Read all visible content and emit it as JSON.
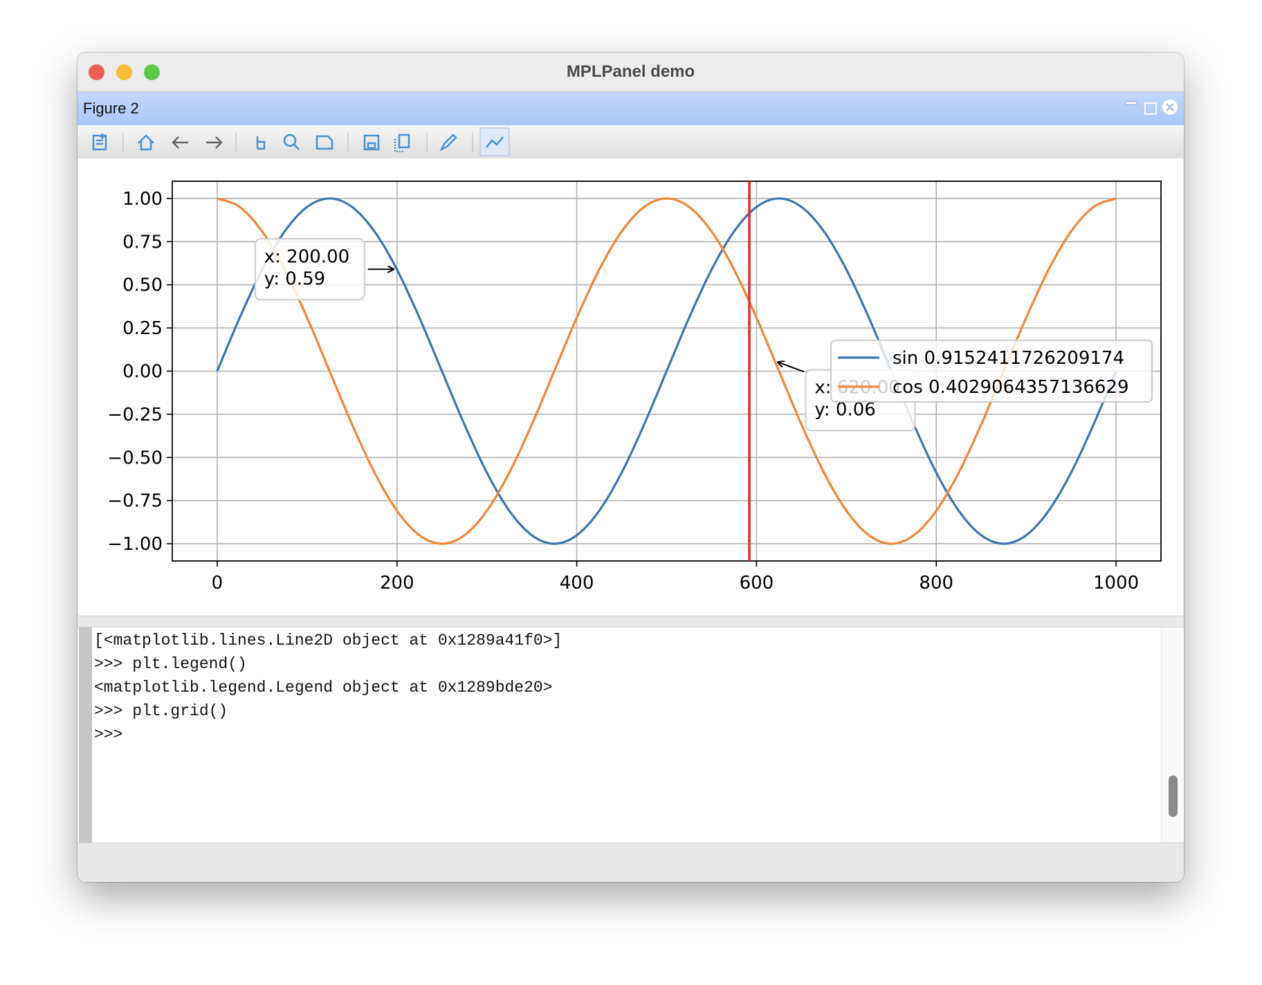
{
  "window": {
    "title": "MPLPanel demo"
  },
  "panel": {
    "title": "Figure 2"
  },
  "chart_data": {
    "type": "line",
    "x": [
      0,
      25,
      50,
      75,
      100,
      125,
      150,
      175,
      200,
      225,
      250,
      275,
      300,
      325,
      350,
      375,
      400,
      425,
      450,
      475,
      500,
      525,
      550,
      575,
      600,
      625,
      650,
      675,
      700,
      725,
      750,
      775,
      800,
      825,
      850,
      875,
      900,
      925,
      950,
      975,
      1000
    ],
    "series": [
      {
        "name": "sin 0.9152411726209174",
        "color": "#3b75af",
        "values": [
          0,
          0.309,
          0.588,
          0.809,
          0.951,
          1,
          0.951,
          0.809,
          0.588,
          0.309,
          0,
          -0.309,
          -0.588,
          -0.809,
          -0.951,
          -1,
          -0.951,
          -0.809,
          -0.588,
          -0.309,
          0,
          0.309,
          0.588,
          0.809,
          0.951,
          1,
          0.951,
          0.809,
          0.588,
          0.309,
          0,
          -0.309,
          -0.588,
          -0.809,
          -0.951,
          -1,
          -0.951,
          -0.809,
          -0.588,
          -0.309,
          0
        ]
      },
      {
        "name": "cos 0.4029064357136629",
        "color": "#ef8636",
        "values": [
          1,
          0.951,
          0.809,
          0.588,
          0.309,
          0,
          -0.309,
          -0.588,
          -0.809,
          -0.951,
          -1,
          -0.951,
          -0.809,
          -0.588,
          -0.309,
          0,
          0.309,
          0.588,
          0.809,
          0.951,
          1,
          0.951,
          0.809,
          0.588,
          0.309,
          0,
          -0.309,
          -0.588,
          -0.809,
          -0.951,
          -1,
          -0.951,
          -0.809,
          -0.588,
          -0.309,
          0,
          0.309,
          0.588,
          0.809,
          0.951,
          1
        ]
      }
    ],
    "xlim": [
      -50,
      1050
    ],
    "ylim": [
      -1.1,
      1.1
    ],
    "xticks": [
      0,
      200,
      400,
      600,
      800,
      1000
    ],
    "yticks": [
      {
        "value": -1,
        "label": "−1.00"
      },
      {
        "value": -0.75,
        "label": "−0.75"
      },
      {
        "value": -0.5,
        "label": "−0.50"
      },
      {
        "value": -0.25,
        "label": "−0.25"
      },
      {
        "value": 0,
        "label": "0.00"
      },
      {
        "value": 0.25,
        "label": "0.25"
      },
      {
        "value": 0.5,
        "label": "0.50"
      },
      {
        "value": 0.75,
        "label": "0.75"
      },
      {
        "value": 1,
        "label": "1.00"
      }
    ],
    "grid": true,
    "legend": "center right",
    "cursor": {
      "x": 592,
      "color": "#e8262a"
    },
    "annotations": [
      {
        "x": 200,
        "y": 0.59,
        "lines": [
          "x: 200.00",
          "y: 0.59"
        ]
      },
      {
        "x": 620,
        "y": 0.06,
        "lines": [
          "x: 620.00",
          "y: 0.06"
        ]
      }
    ]
  },
  "console": {
    "lines": [
      "[<matplotlib.lines.Line2D object at 0x1289a41f0>]",
      ">>> plt.legend()",
      "<matplotlib.legend.Legend object at 0x1289bde20>",
      ">>> plt.grid()",
      ">>>"
    ]
  }
}
